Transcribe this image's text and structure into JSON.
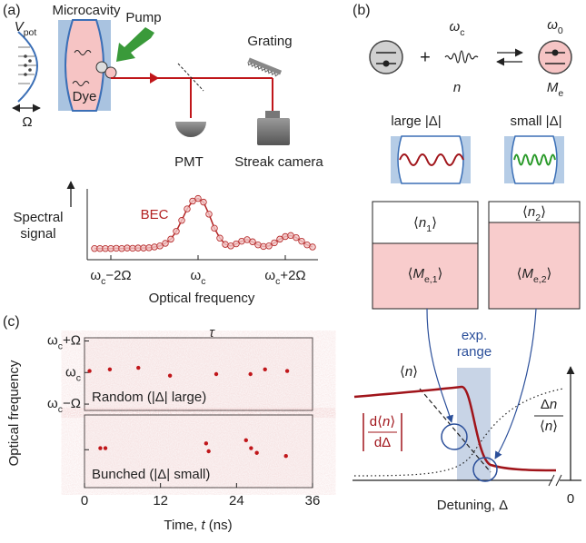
{
  "panel_a": {
    "label": "(a)",
    "microcavity": "Microcavity",
    "pump": "Pump",
    "potential": [
      {
        "i": "V"
      },
      {
        "sub": "pot"
      }
    ],
    "omega": "Ω",
    "dye": "Dye",
    "grating": "Grating",
    "pmt": "PMT",
    "streak_camera": "Streak camera",
    "spectrum": {
      "type": "scatter",
      "ylabel_lines": [
        "Spectral",
        "signal"
      ],
      "xlabel": "Optical frequency",
      "annotation": "BEC",
      "color": "#b22222",
      "xlim": [
        -2.5,
        2.75
      ],
      "ylim": [
        0,
        1.15
      ],
      "xticks": [
        {
          "value": -2,
          "label": [
            "ω",
            {
              "sub": "c"
            },
            "−2Ω"
          ]
        },
        {
          "value": 0,
          "label": [
            "ω",
            {
              "sub": "c"
            }
          ]
        },
        {
          "value": 2,
          "label": [
            "ω",
            {
              "sub": "c"
            },
            "+2Ω"
          ]
        }
      ],
      "x": [
        -2.375,
        -2.25,
        -2.125,
        -2,
        -1.875,
        -1.75,
        -1.625,
        -1.5,
        -1.375,
        -1.25,
        -1.125,
        -1,
        -0.875,
        -0.75,
        -0.625,
        -0.5,
        -0.375,
        -0.25,
        -0.125,
        0,
        0.125,
        0.25,
        0.375,
        0.5,
        0.625,
        0.75,
        0.875,
        1,
        1.125,
        1.25,
        1.375,
        1.5,
        1.625,
        1.75,
        1.875,
        2,
        2.125,
        2.25,
        2.375,
        2.5,
        2.625
      ],
      "values": [
        0.04,
        0.04,
        0.04,
        0.04,
        0.045,
        0.04,
        0.05,
        0.045,
        0.05,
        0.05,
        0.055,
        0.07,
        0.09,
        0.14,
        0.22,
        0.37,
        0.58,
        0.8,
        0.95,
        1.0,
        0.93,
        0.7,
        0.43,
        0.24,
        0.12,
        0.09,
        0.13,
        0.18,
        0.21,
        0.17,
        0.11,
        0.08,
        0.09,
        0.15,
        0.22,
        0.27,
        0.29,
        0.25,
        0.18,
        0.11,
        0.07
      ]
    }
  },
  "panel_b": {
    "label": "(b)",
    "photon_freq": [
      {
        "i": "ω"
      },
      {
        "sub": "c"
      }
    ],
    "photon_number": "n",
    "plus": "+",
    "molecule_freq": [
      {
        "i": "ω"
      },
      {
        "sub": "0"
      }
    ],
    "excited": [
      {
        "i": "M"
      },
      {
        "sub": "e"
      }
    ],
    "large": "large |Δ|",
    "small": "small |Δ|",
    "box1_top": [
      "⟨",
      {
        "i": "n"
      },
      {
        "sub": "1"
      },
      "⟩"
    ],
    "box1_bottom": [
      "⟨",
      {
        "i": "M"
      },
      {
        "sub": "e,1"
      },
      "⟩"
    ],
    "box2_top": [
      "⟨",
      {
        "i": "n"
      },
      {
        "sub": "2"
      },
      "⟩"
    ],
    "box2_bottom": [
      "⟨",
      {
        "i": "M"
      },
      {
        "sub": "e,2"
      },
      "⟩"
    ],
    "mean_n": [
      "⟨",
      {
        "i": "n"
      },
      "⟩"
    ],
    "exp_range_lines": [
      "exp.",
      "range"
    ],
    "derivative_num": [
      "d⟨",
      {
        "i": "n"
      },
      "⟩"
    ],
    "derivative_den": "dΔ",
    "fluct_num": [
      "Δ",
      {
        "i": "n"
      }
    ],
    "fluct_den": [
      "⟨",
      {
        "i": "n"
      },
      "⟩"
    ],
    "xlabel": "Detuning, Δ",
    "zero": "0"
  },
  "panel_c": {
    "type": "scatter",
    "label": "(c)",
    "ylabel": "Optical frequency",
    "xlabel": [
      "Time, ",
      {
        "i": "t"
      },
      " (ns)"
    ],
    "tau": "τ",
    "color": "#c0161a",
    "xlim": [
      0,
      36
    ],
    "xticks": [
      0,
      12,
      24,
      36
    ],
    "ylim": [
      -1.2,
      1.1
    ],
    "images": [
      {
        "annotation": "Random (|Δ| large)",
        "yticks": [
          {
            "value": 1,
            "label": [
              "ω",
              {
                "sub": "c"
              },
              "+Ω"
            ]
          },
          {
            "value": 0,
            "label": [
              "ω",
              {
                "sub": "c"
              }
            ]
          },
          {
            "value": -1,
            "label": [
              "ω",
              {
                "sub": "c"
              },
              "−Ω"
            ]
          }
        ],
        "x": [
          0.8,
          4,
          8.5,
          13.5,
          20.8,
          26.2,
          28.5,
          32
        ],
        "y": [
          0.05,
          0.1,
          0.15,
          -0.1,
          -0.05,
          -0.05,
          0.1,
          0.05
        ]
      },
      {
        "annotation": "Bunched (|Δ| small)",
        "yticks": [
          {
            "value": 0,
            "label": null
          }
        ],
        "x": [
          2.5,
          3.3,
          19.2,
          19.6,
          25.5,
          26.3,
          27.2,
          31.8
        ],
        "y": [
          0.05,
          0.05,
          0.2,
          -0.05,
          0.3,
          0.05,
          -0.1,
          -0.2
        ]
      }
    ]
  }
}
